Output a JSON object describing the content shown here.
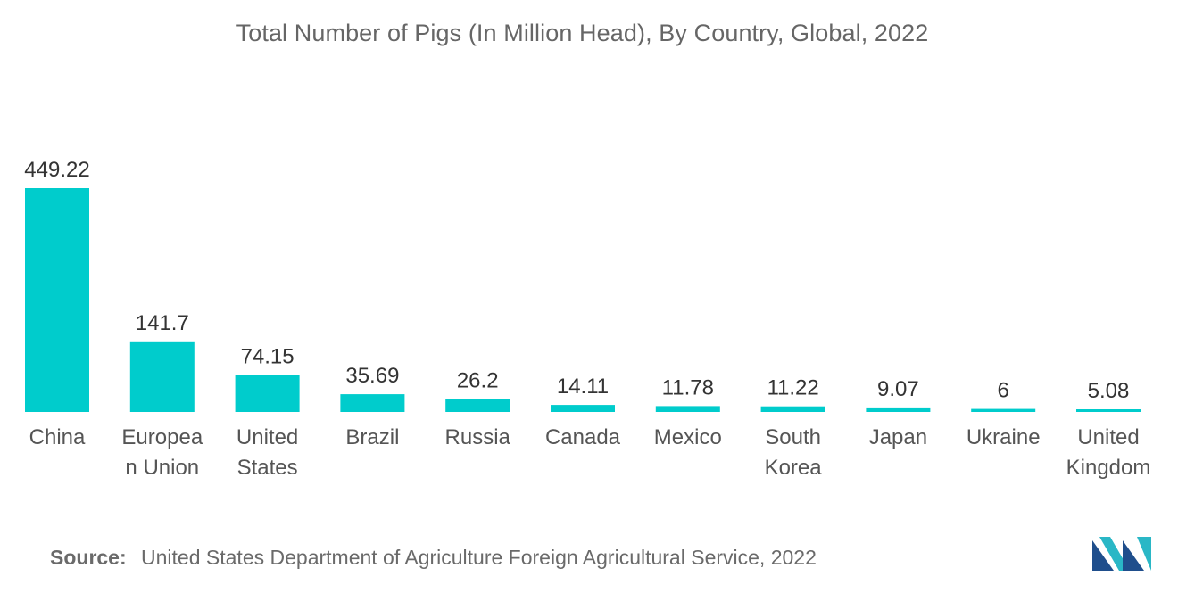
{
  "chart_data": {
    "type": "bar",
    "title": "Total Number of Pigs (In Million Head), By Country, Global, 2022",
    "categories": [
      "China",
      "European Union",
      "United States",
      "Brazil",
      "Russia",
      "Canada",
      "Mexico",
      "South Korea",
      "Japan",
      "Ukraine",
      "United Kingdom"
    ],
    "category_lines": [
      [
        "China"
      ],
      [
        "Europea",
        "n Union"
      ],
      [
        "United",
        "States"
      ],
      [
        "Brazil"
      ],
      [
        "Russia"
      ],
      [
        "Canada"
      ],
      [
        "Mexico"
      ],
      [
        "South",
        "Korea"
      ],
      [
        "Japan"
      ],
      [
        "Ukraine"
      ],
      [
        "United",
        "Kingdom"
      ]
    ],
    "values": [
      449.22,
      141.7,
      74.15,
      35.69,
      26.2,
      14.11,
      11.78,
      11.22,
      9.07,
      6,
      5.08
    ],
    "value_labels": [
      "449.22",
      "141.7",
      "74.15",
      "35.69",
      "26.2",
      "14.11",
      "11.78",
      "11.22",
      "9.07",
      "6",
      "5.08"
    ],
    "xlabel": "",
    "ylabel": "",
    "ylim": [
      0,
      449.22
    ],
    "grid": false,
    "legend": "none",
    "bar_color": "#00cccc"
  },
  "source": {
    "label": "Source:",
    "text": "United States Department of Agriculture Foreign Agricultural Service, 2022"
  },
  "logo": {
    "icon": "mordor-intelligence-logo-icon",
    "colors": [
      "#1f4e8c",
      "#2ab7c6"
    ]
  }
}
